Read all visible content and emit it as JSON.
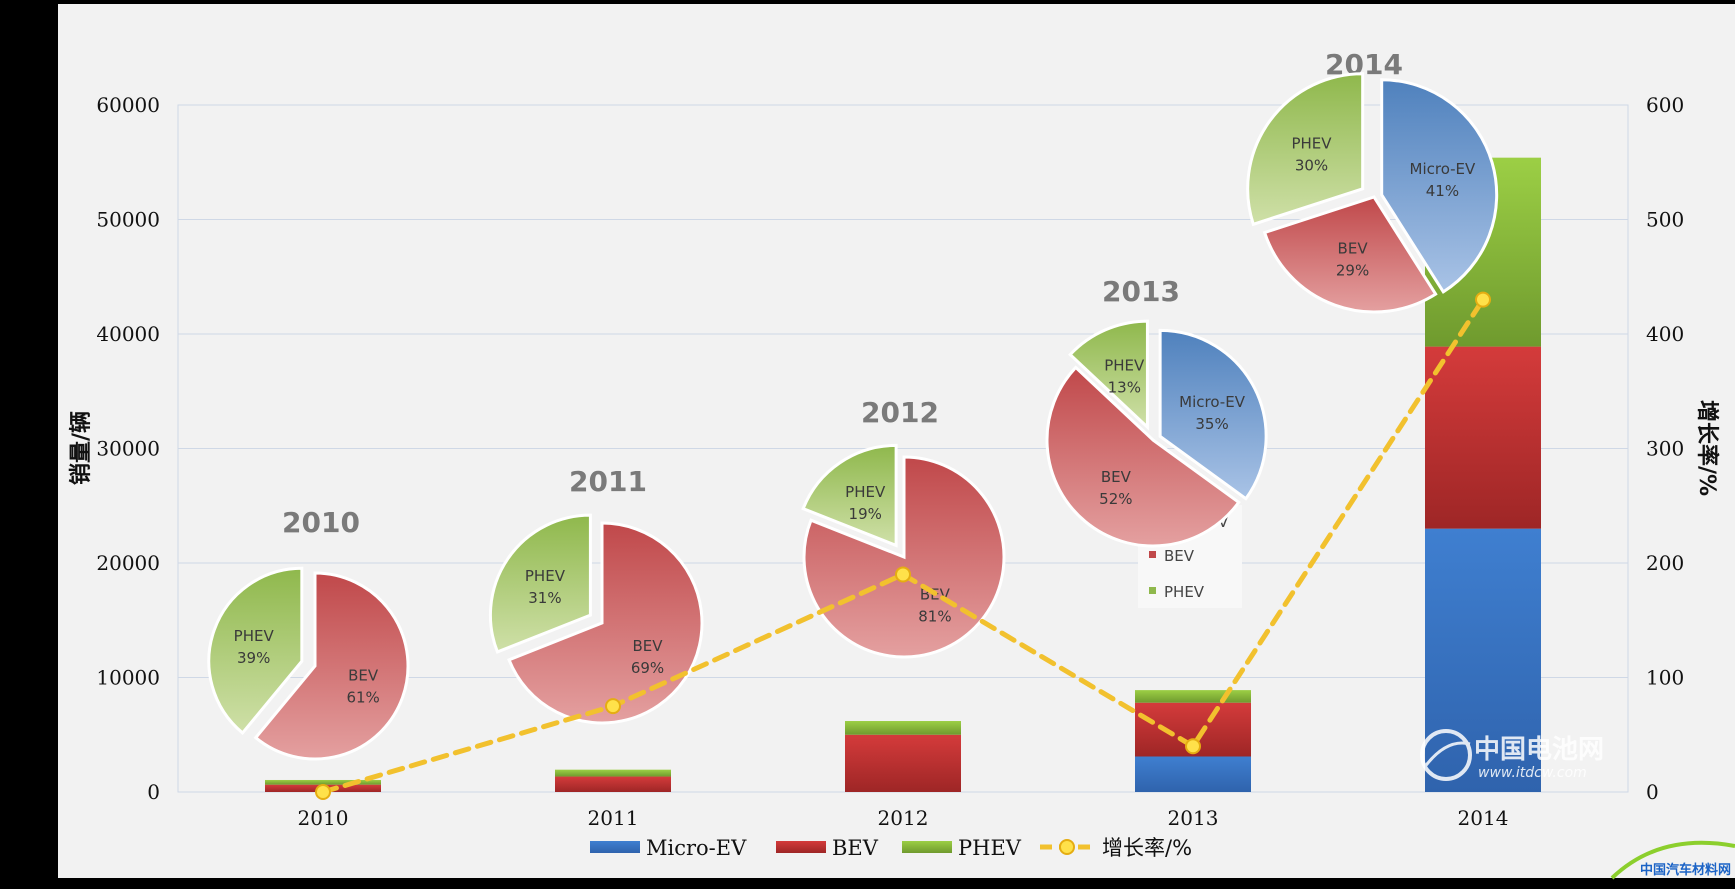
{
  "chart_data": {
    "type": "bar",
    "categories": [
      "2010",
      "2011",
      "2012",
      "2013",
      "2014"
    ],
    "stacked": true,
    "series": [
      {
        "name": "Micro-EV",
        "values": [
          0,
          0,
          0,
          3100,
          23000
        ],
        "color": "#3a78c9"
      },
      {
        "name": "BEV",
        "values": [
          640,
          1350,
          5000,
          4700,
          15900
        ],
        "color": "#c73a3a"
      },
      {
        "name": "PHEV",
        "values": [
          410,
          600,
          1200,
          1100,
          16500
        ],
        "color": "#8dbb3c"
      }
    ],
    "line_series": {
      "name": "增长率/%",
      "values": [
        0,
        75,
        190,
        40,
        430
      ],
      "color": "#f2c12e",
      "axis": "right"
    },
    "ylabel": "销量/辆",
    "ylabel_right": "增长率/%",
    "ylim": [
      0,
      60000
    ],
    "ylim_right": [
      0,
      600
    ],
    "yticks": [
      "0",
      "10000",
      "20000",
      "30000",
      "40000",
      "50000",
      "60000"
    ],
    "yticks_right": [
      "0",
      "100",
      "200",
      "300",
      "400",
      "500",
      "600"
    ],
    "grid": true,
    "legend_position": "bottom",
    "pies": [
      {
        "title": "2010",
        "slices": [
          {
            "label": "BEV",
            "pct": "61%",
            "value": 61
          },
          {
            "label": "PHEV",
            "pct": "39%",
            "value": 39
          }
        ]
      },
      {
        "title": "2011",
        "slices": [
          {
            "label": "BEV",
            "pct": "69%",
            "value": 69
          },
          {
            "label": "PHEV",
            "pct": "31%",
            "value": 31
          }
        ]
      },
      {
        "title": "2012",
        "slices": [
          {
            "label": "BEV",
            "pct": "81%",
            "value": 81
          },
          {
            "label": "PHEV",
            "pct": "19%",
            "value": 19
          }
        ]
      },
      {
        "title": "2013",
        "slices": [
          {
            "label": "Micro-EV",
            "pct": "35%",
            "value": 35
          },
          {
            "label": "BEV",
            "pct": "52%",
            "value": 52
          },
          {
            "label": "PHEV",
            "pct": "13%",
            "value": 13
          }
        ]
      },
      {
        "title": "2014",
        "slices": [
          {
            "label": "Micro-EV",
            "pct": "41%",
            "value": 41
          },
          {
            "label": "BEV",
            "pct": "29%",
            "value": 29
          },
          {
            "label": "PHEV",
            "pct": "30%",
            "value": 30
          }
        ]
      }
    ],
    "mini_legend": [
      "BEV",
      "PHEV"
    ],
    "mini_legend_fragment": "V"
  },
  "watermark": {
    "brand": "中国电池网",
    "url": "www.itdcw.com",
    "corner_logo": "中国汽车材料网"
  }
}
